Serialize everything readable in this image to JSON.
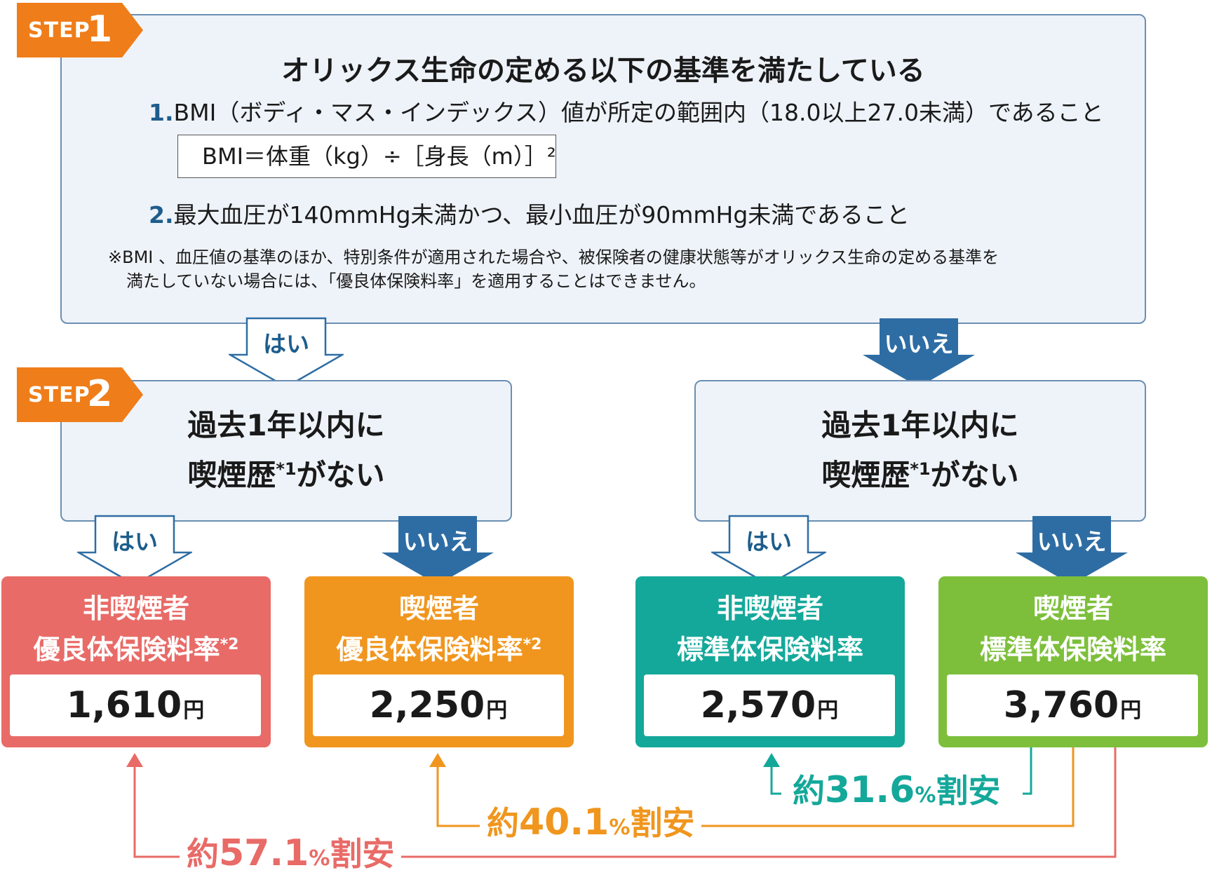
{
  "step1": {
    "tag_word": "STEP",
    "tag_num": "1",
    "title": "オリックス生命の定める以下の基準を満たしている",
    "criterion1_num": "1.",
    "criterion1_text": "BMI（ボディ・マス・インデックス）値が所定の範囲内（18.0以上27.0未満）であること",
    "formula": "BMI＝体重（kg）÷［身長（m）］²",
    "criterion2_num": "2.",
    "criterion2_text": "最大血圧が140mmHg未満かつ、最小血圧が90mmHg未満であること",
    "note_line1": "※BMI 、血圧値の基準のほか、特別条件が適用された場合や、被保険者の健康状態等がオリックス生命の定める基準を",
    "note_line2": "満たしていない場合には、「優良体保険料率」を適用することはできません。"
  },
  "step2": {
    "tag_word": "STEP",
    "tag_num": "2"
  },
  "answers": {
    "yes": "はい",
    "no": "いいえ"
  },
  "question": {
    "line1": "過去1年以内に",
    "line2_pre": "喫煙歴",
    "line2_sup": "*1",
    "line2_post": "がない"
  },
  "rates": [
    {
      "line1": "非喫煙者",
      "line2": "優良体保険料率",
      "sup": "*2",
      "price": "1,610",
      "unit": "円"
    },
    {
      "line1": "喫煙者",
      "line2": "優良体保険料率",
      "sup": "*2",
      "price": "2,250",
      "unit": "円"
    },
    {
      "line1": "非喫煙者",
      "line2": "標準体保険料率",
      "sup": "",
      "price": "2,570",
      "unit": "円"
    },
    {
      "line1": "喫煙者",
      "line2": "標準体保険料率",
      "sup": "",
      "price": "3,760",
      "unit": "円"
    }
  ],
  "discounts": {
    "d316": {
      "prefix": "約",
      "number": "31.6",
      "pct": "%",
      "suffix": "割安"
    },
    "d401": {
      "prefix": "約",
      "number": "40.1",
      "pct": "%",
      "suffix": "割安"
    },
    "d571": {
      "prefix": "約",
      "number": "57.1",
      "pct": "%",
      "suffix": "割安"
    }
  },
  "colors": {
    "orange_tag": "#ef7d1a",
    "panel_bg": "#eef3f9",
    "panel_border": "#6b8fb3",
    "arrow_blue": "#2e6da4",
    "red_box": "#e86b67",
    "orange_box": "#f0961e",
    "teal_box": "#14a89a",
    "green_box": "#7dbf3b"
  }
}
